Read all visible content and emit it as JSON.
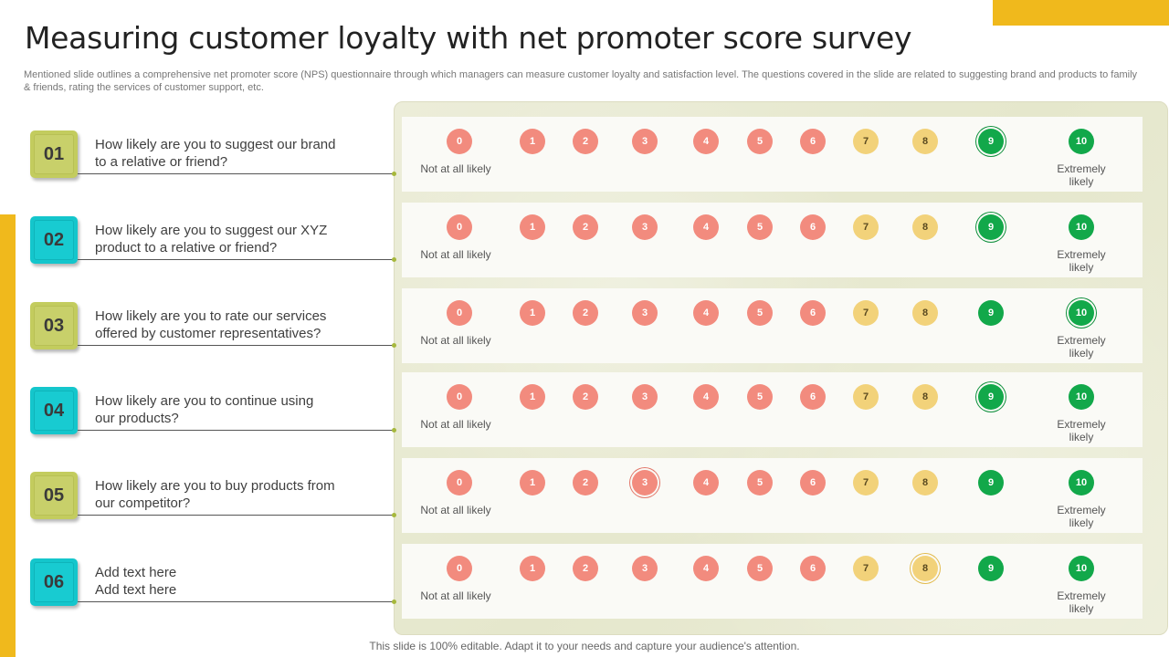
{
  "title": "Measuring customer loyalty with net promoter score survey",
  "subtitle": "Mentioned slide outlines a comprehensive net promoter score (NPS) questionnaire through which managers can measure customer loyalty and satisfaction level. The questions covered in the slide are related to suggesting brand and products to family & friends, rating the services of customer support, etc.",
  "footer": "This slide is 100% editable. Adapt it to your needs and capture your audience's attention.",
  "scale": {
    "low_label": "Not at all likely",
    "high_label": "Extremely likely",
    "points": [
      "0",
      "1",
      "2",
      "3",
      "4",
      "5",
      "6",
      "7",
      "8",
      "9",
      "10"
    ],
    "colors": {
      "detractor": "#f28b7e",
      "passive": "#f2d27a",
      "promoter": "#12a84a"
    }
  },
  "questions": [
    {
      "number": "01",
      "line1": "How likely are you to suggest our brand",
      "line2": "to a relative or friend?",
      "selected": 9,
      "color": "olive"
    },
    {
      "number": "02",
      "line1": "How likely are you to suggest our XYZ",
      "line2": "product to a relative or friend?",
      "selected": 9,
      "color": "teal"
    },
    {
      "number": "03",
      "line1": "How likely are you to rate our services",
      "line2": "offered by customer representatives?",
      "selected": 10,
      "color": "olive"
    },
    {
      "number": "04",
      "line1": "How likely are you to continue using",
      "line2": "our products?",
      "selected": 9,
      "color": "teal"
    },
    {
      "number": "05",
      "line1": "How likely are you to buy products from",
      "line2": "our competitor?",
      "selected": 3,
      "color": "olive"
    },
    {
      "number": "06",
      "line1": "Add text here",
      "line2": "Add text here",
      "selected": 8,
      "color": "teal"
    }
  ]
}
